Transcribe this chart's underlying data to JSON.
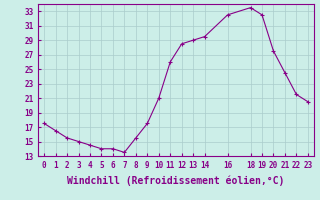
{
  "hours": [
    0,
    1,
    2,
    3,
    4,
    5,
    6,
    7,
    8,
    9,
    10,
    11,
    12,
    13,
    14,
    16,
    18,
    19,
    20,
    21,
    22,
    23
  ],
  "values": [
    17.5,
    16.5,
    15.5,
    15.0,
    14.5,
    14.0,
    14.0,
    13.5,
    15.5,
    17.5,
    21.0,
    26.0,
    28.5,
    29.0,
    29.5,
    32.5,
    33.5,
    32.5,
    27.5,
    24.5,
    21.5,
    20.5
  ],
  "line_color": "#880088",
  "marker": "+",
  "bg_color": "#cceee8",
  "grid_color": "#aacccc",
  "xlabel": "Windchill (Refroidissement éolien,°C)",
  "xlim": [
    -0.5,
    23.5
  ],
  "ylim": [
    13,
    34
  ],
  "yticks": [
    13,
    15,
    17,
    19,
    21,
    23,
    25,
    27,
    29,
    31,
    33
  ],
  "xticks": [
    0,
    1,
    2,
    3,
    4,
    5,
    6,
    7,
    8,
    9,
    10,
    11,
    12,
    13,
    14,
    16,
    18,
    19,
    20,
    21,
    22,
    23
  ],
  "tick_color": "#880088",
  "tick_fontsize": 5.5,
  "xlabel_fontsize": 7.0
}
